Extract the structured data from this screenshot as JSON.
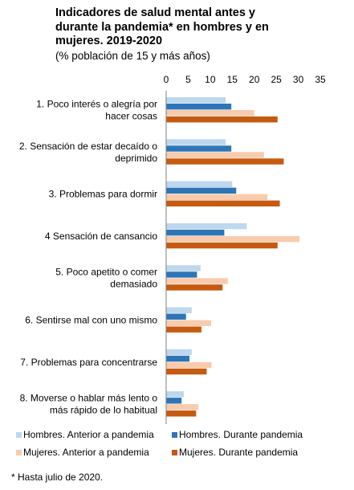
{
  "title_lines": [
    "Indicadores de salud mental antes y",
    "durante la pandemia* en hombres y en",
    "mujeres. 2019-2020"
  ],
  "subtitle": "(% población de 15 y más años)",
  "footnote": "* Hasta julio de 2020.",
  "colors": {
    "hombres_antes": "#BDD7EE",
    "hombres_durante": "#2E75B6",
    "mujeres_antes": "#F8CBAD",
    "mujeres_durante": "#C55A11"
  },
  "chart_data": {
    "type": "bar",
    "orientation": "horizontal",
    "x_ticks": [
      0,
      5,
      10,
      15,
      20,
      25,
      30,
      35
    ],
    "xlim": [
      0,
      35
    ],
    "grid": false,
    "legend_position": "bottom",
    "categories": [
      [
        "1. Poco interés o alegría por",
        "hacer cosas"
      ],
      [
        "2. Sensación de estar decaído o",
        "deprimido"
      ],
      [
        "3. Problemas para dormir"
      ],
      [
        "4 Sensación de cansancio"
      ],
      [
        "5. Poco apetito o comer",
        "demasiado"
      ],
      [
        "6. Sentirse mal con uno mismo"
      ],
      [
        "7. Problemas para concentrarse"
      ],
      [
        "8. Moverse o hablar más lento o",
        "más rápido de lo habitual"
      ]
    ],
    "series": [
      {
        "name": "Hombres. Anterior a pandemia",
        "color_key": "hombres_antes",
        "values": [
          13.5,
          13.5,
          15.0,
          18.3,
          7.8,
          5.8,
          5.8,
          4.0
        ]
      },
      {
        "name": "Hombres. Durante pandemia",
        "color_key": "hombres_durante",
        "values": [
          14.8,
          14.8,
          15.9,
          13.2,
          7.0,
          4.5,
          5.3,
          3.5
        ]
      },
      {
        "name": "Mujeres. Anterior a pandemia",
        "color_key": "mujeres_antes",
        "values": [
          20.0,
          22.2,
          23.0,
          30.3,
          14.0,
          10.2,
          10.3,
          7.3
        ]
      },
      {
        "name": "Mujeres. Durante pandemia",
        "color_key": "mujeres_durante",
        "values": [
          25.3,
          26.7,
          25.8,
          25.3,
          12.8,
          8.0,
          9.2,
          6.8
        ]
      }
    ]
  }
}
